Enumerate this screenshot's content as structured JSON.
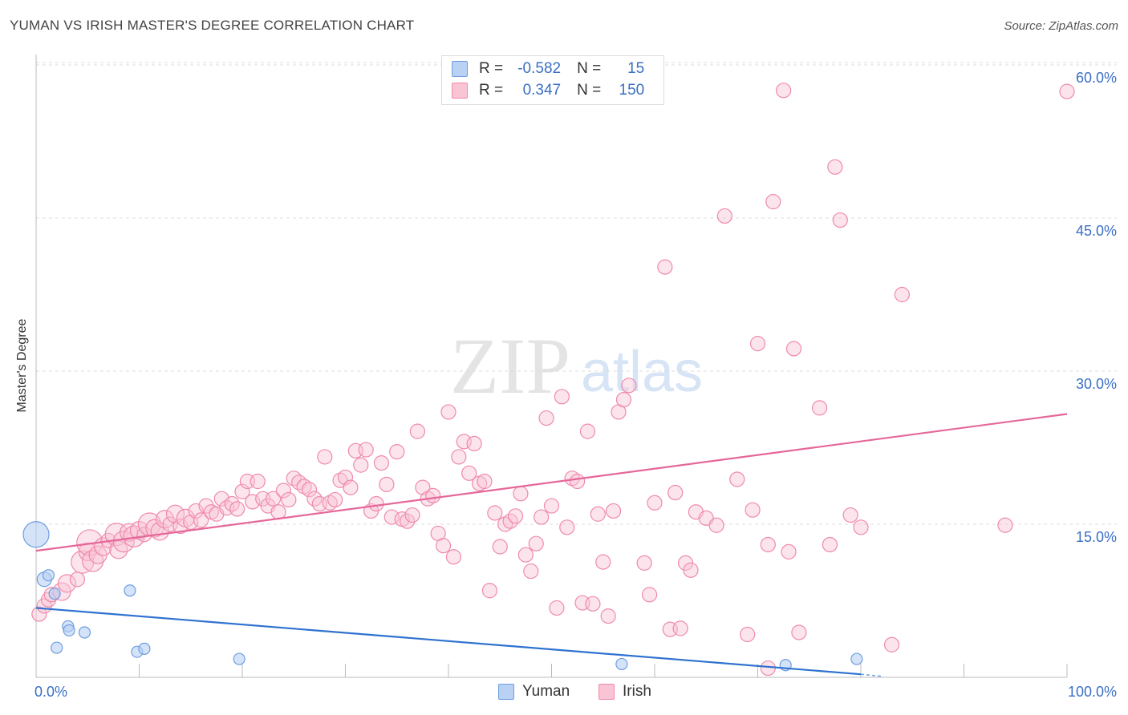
{
  "title": "YUMAN VS IRISH MASTER'S DEGREE CORRELATION CHART",
  "source": "Source: ZipAtlas.com",
  "watermark": {
    "zip": "ZIP",
    "atlas": "atlas"
  },
  "legend_stats": {
    "r_label": "R =",
    "n_label": "N =",
    "yuman": {
      "r": "-0.582",
      "n": "15"
    },
    "irish": {
      "r": "0.347",
      "n": "150"
    }
  },
  "chart_data": {
    "type": "scatter",
    "title": "YUMAN VS IRISH MASTER'S DEGREE CORRELATION CHART",
    "xlabel": "",
    "ylabel": "Master's Degree",
    "xlim": [
      0,
      100
    ],
    "ylim": [
      0,
      62
    ],
    "x_tick_labels": [
      "0.0%",
      "100.0%"
    ],
    "y_ticks": [
      15,
      30,
      45,
      60
    ],
    "y_tick_labels": [
      "15.0%",
      "30.0%",
      "45.0%",
      "60.0%"
    ],
    "grid": true,
    "legend_position": "bottom-center",
    "colors": {
      "yuman_fill": "#b9d1f3",
      "yuman_stroke": "#6d9de0",
      "yuman_line": "#2f72d0",
      "irish_fill": "#f9c4d4",
      "irish_stroke": "#ef8aab",
      "irish_line": "#e5679a",
      "tick_label": "#3a6fc4"
    },
    "series": [
      {
        "name": "Yuman",
        "points": [
          [
            0.0,
            14.0,
            16
          ],
          [
            0.8,
            9.6,
            9
          ],
          [
            1.2,
            10.0,
            7
          ],
          [
            1.8,
            8.2,
            7
          ],
          [
            2.0,
            2.9,
            7
          ],
          [
            3.1,
            5.0,
            7
          ],
          [
            3.2,
            4.6,
            7
          ],
          [
            4.7,
            4.4,
            7
          ],
          [
            9.1,
            8.5,
            7
          ],
          [
            9.8,
            2.5,
            7
          ],
          [
            10.5,
            2.8,
            7
          ],
          [
            19.7,
            1.8,
            7
          ],
          [
            56.8,
            1.3,
            7
          ],
          [
            72.7,
            1.2,
            7
          ],
          [
            79.6,
            1.8,
            7
          ]
        ],
        "trend": {
          "x": [
            0,
            80
          ],
          "y": [
            6.8,
            0.3
          ]
        },
        "trend_dashed": {
          "x": [
            80,
            82
          ],
          "y": [
            0.3,
            0.1
          ]
        }
      },
      {
        "name": "Irish",
        "points": [
          [
            0.3,
            6.2,
            9
          ],
          [
            0.8,
            7.0,
            9
          ],
          [
            1.2,
            7.6,
            9
          ],
          [
            1.5,
            8.1,
            9
          ],
          [
            2.5,
            8.4,
            11
          ],
          [
            3.0,
            9.2,
            11
          ],
          [
            4.0,
            9.6,
            9
          ],
          [
            4.5,
            11.3,
            14
          ],
          [
            5.0,
            12.3,
            11
          ],
          [
            5.2,
            13.2,
            16
          ],
          [
            5.5,
            11.4,
            13
          ],
          [
            6.0,
            12.0,
            11
          ],
          [
            6.5,
            12.8,
            11
          ],
          [
            7.0,
            13.4,
            9
          ],
          [
            7.8,
            14.0,
            14
          ],
          [
            8.0,
            12.5,
            11
          ],
          [
            8.5,
            13.3,
            13
          ],
          [
            9.0,
            14.2,
            11
          ],
          [
            9.5,
            13.8,
            13
          ],
          [
            10.0,
            14.4,
            11
          ],
          [
            10.5,
            14.0,
            9
          ],
          [
            11.0,
            15.0,
            14
          ],
          [
            11.5,
            14.6,
            11
          ],
          [
            12.0,
            14.3,
            11
          ],
          [
            12.5,
            15.5,
            11
          ],
          [
            13.0,
            15.0,
            9
          ],
          [
            13.5,
            16.0,
            11
          ],
          [
            14.0,
            14.8,
            9
          ],
          [
            14.5,
            15.6,
            11
          ],
          [
            15.0,
            15.2,
            9
          ],
          [
            15.5,
            16.3,
            9
          ],
          [
            16.0,
            15.4,
            9
          ],
          [
            16.5,
            16.8,
            9
          ],
          [
            17.0,
            16.2,
            9
          ],
          [
            17.5,
            16.0,
            9
          ],
          [
            18.0,
            17.5,
            9
          ],
          [
            18.5,
            16.6,
            9
          ],
          [
            19.0,
            17.0,
            9
          ],
          [
            19.5,
            16.5,
            9
          ],
          [
            20.0,
            18.2,
            9
          ],
          [
            20.5,
            19.2,
            9
          ],
          [
            21.0,
            17.2,
            9
          ],
          [
            21.5,
            19.2,
            9
          ],
          [
            22.0,
            17.5,
            9
          ],
          [
            22.5,
            16.8,
            9
          ],
          [
            23.0,
            17.5,
            9
          ],
          [
            23.5,
            16.2,
            9
          ],
          [
            24.0,
            18.3,
            9
          ],
          [
            24.5,
            17.4,
            9
          ],
          [
            25.0,
            19.5,
            9
          ],
          [
            25.5,
            19.1,
            9
          ],
          [
            26.0,
            18.7,
            9
          ],
          [
            26.5,
            18.4,
            9
          ],
          [
            27.0,
            17.5,
            9
          ],
          [
            27.5,
            17.0,
            9
          ],
          [
            28.0,
            21.6,
            9
          ],
          [
            28.5,
            17.1,
            9
          ],
          [
            29.0,
            17.4,
            9
          ],
          [
            29.5,
            19.3,
            9
          ],
          [
            30.0,
            19.6,
            9
          ],
          [
            30.5,
            18.6,
            9
          ],
          [
            31.0,
            22.2,
            9
          ],
          [
            31.5,
            20.8,
            9
          ],
          [
            32.0,
            22.3,
            9
          ],
          [
            32.5,
            16.3,
            9
          ],
          [
            33.0,
            17.0,
            9
          ],
          [
            33.5,
            21.0,
            9
          ],
          [
            34.0,
            18.9,
            9
          ],
          [
            34.5,
            15.7,
            9
          ],
          [
            35.0,
            22.1,
            9
          ],
          [
            35.5,
            15.5,
            9
          ],
          [
            36.0,
            15.3,
            9
          ],
          [
            36.5,
            15.9,
            9
          ],
          [
            37.0,
            24.1,
            9
          ],
          [
            37.5,
            18.6,
            9
          ],
          [
            38.0,
            17.5,
            9
          ],
          [
            38.5,
            17.8,
            9
          ],
          [
            39.0,
            14.1,
            9
          ],
          [
            39.5,
            12.9,
            9
          ],
          [
            40.0,
            26.0,
            9
          ],
          [
            40.5,
            11.8,
            9
          ],
          [
            41.0,
            21.6,
            9
          ],
          [
            41.5,
            23.1,
            9
          ],
          [
            42.0,
            20.0,
            9
          ],
          [
            42.5,
            22.9,
            9
          ],
          [
            43.0,
            19.0,
            9
          ],
          [
            43.5,
            19.2,
            9
          ],
          [
            44.0,
            8.5,
            9
          ],
          [
            44.5,
            16.1,
            9
          ],
          [
            45.0,
            12.8,
            9
          ],
          [
            45.5,
            15.0,
            9
          ],
          [
            46.0,
            15.3,
            9
          ],
          [
            46.5,
            15.8,
            9
          ],
          [
            47.0,
            18.0,
            9
          ],
          [
            47.5,
            12.0,
            9
          ],
          [
            48.0,
            10.4,
            9
          ],
          [
            48.5,
            13.1,
            9
          ],
          [
            49.0,
            15.7,
            9
          ],
          [
            49.5,
            25.4,
            9
          ],
          [
            50.0,
            16.8,
            9
          ],
          [
            50.5,
            6.8,
            9
          ],
          [
            51.0,
            27.5,
            9
          ],
          [
            51.5,
            14.7,
            9
          ],
          [
            52.0,
            19.5,
            9
          ],
          [
            52.5,
            19.2,
            9
          ],
          [
            53.0,
            7.3,
            9
          ],
          [
            53.5,
            24.1,
            9
          ],
          [
            54.0,
            7.2,
            9
          ],
          [
            54.5,
            16.0,
            9
          ],
          [
            55.0,
            11.3,
            9
          ],
          [
            55.5,
            6.0,
            9
          ],
          [
            56.0,
            16.3,
            9
          ],
          [
            56.5,
            26.0,
            9
          ],
          [
            57.0,
            27.2,
            9
          ],
          [
            57.5,
            28.6,
            9
          ],
          [
            59.0,
            11.2,
            9
          ],
          [
            59.5,
            8.1,
            9
          ],
          [
            60.0,
            17.1,
            9
          ],
          [
            61.0,
            40.2,
            9
          ],
          [
            61.5,
            4.7,
            9
          ],
          [
            62.0,
            18.1,
            9
          ],
          [
            62.5,
            4.8,
            9
          ],
          [
            63.0,
            11.2,
            9
          ],
          [
            63.5,
            10.5,
            9
          ],
          [
            64.0,
            16.2,
            9
          ],
          [
            65.0,
            15.6,
            9
          ],
          [
            66.0,
            14.9,
            9
          ],
          [
            66.8,
            45.2,
            9
          ],
          [
            68.0,
            19.4,
            9
          ],
          [
            69.0,
            4.2,
            9
          ],
          [
            69.5,
            16.4,
            9
          ],
          [
            70.0,
            32.7,
            9
          ],
          [
            71.0,
            13.0,
            9
          ],
          [
            71.5,
            46.6,
            9
          ],
          [
            72.5,
            57.5,
            9
          ],
          [
            73.0,
            12.3,
            9
          ],
          [
            73.5,
            32.2,
            9
          ],
          [
            74.0,
            4.4,
            9
          ],
          [
            76.0,
            26.4,
            9
          ],
          [
            77.0,
            13.0,
            9
          ],
          [
            77.5,
            50.0,
            9
          ],
          [
            78.0,
            44.8,
            9
          ],
          [
            79.0,
            15.9,
            9
          ],
          [
            80.0,
            14.7,
            9
          ],
          [
            84.0,
            37.5,
            9
          ],
          [
            83.0,
            3.2,
            9
          ],
          [
            94.0,
            14.9,
            9
          ],
          [
            71.0,
            0.9,
            9
          ],
          [
            100.0,
            57.4,
            9
          ]
        ],
        "trend": {
          "x": [
            0,
            100
          ],
          "y": [
            12.4,
            25.8
          ]
        }
      }
    ]
  },
  "bottom_legend": [
    {
      "key": "yuman",
      "label": "Yuman"
    },
    {
      "key": "irish",
      "label": "Irish"
    }
  ]
}
